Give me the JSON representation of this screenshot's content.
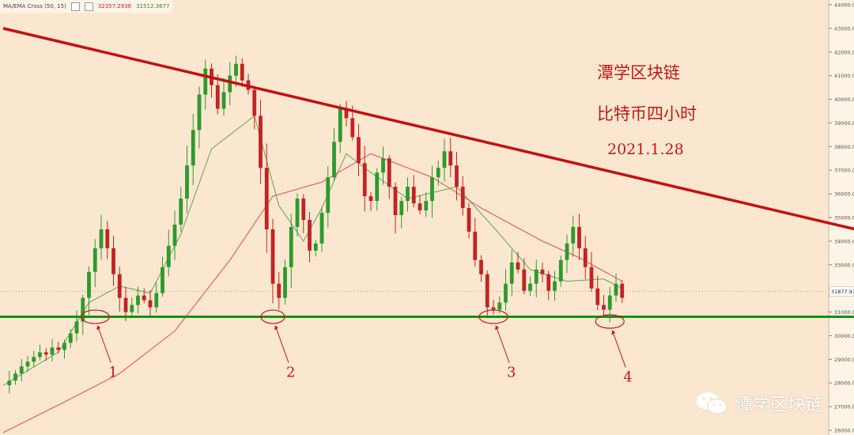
{
  "legend": {
    "indicator": "MA/EMA Cross (50, 15)",
    "value1": "32357.2936",
    "value2": "31512.3677"
  },
  "annotations": {
    "title": "潭学区块链",
    "subtitle": "比特币四小时",
    "date": "2021.1.28"
  },
  "watermark": "潭学区块链",
  "colors": {
    "background": "#fbe7cf",
    "up": "#2d9a2d",
    "down": "#c22323",
    "resistance": "#c21212",
    "support": "#159015",
    "ema_fast": "#6fa85a",
    "ma_slow": "#e05a4a"
  },
  "chart_data": {
    "type": "candlestick",
    "title": "",
    "xlabel": "",
    "ylabel": "",
    "ylim": [
      25800,
      44200
    ],
    "y_ticks": [
      26000,
      27000,
      28000,
      29000,
      30000,
      31000,
      32000,
      33000,
      34000,
      35000,
      36000,
      37000,
      38000,
      39000,
      40000,
      41000,
      42000,
      43000,
      44000
    ],
    "current_price": "31877.97",
    "close_series": [
      27900,
      28100,
      28400,
      28700,
      28900,
      29100,
      29300,
      29200,
      29500,
      29400,
      29700,
      30100,
      30600,
      31600,
      32700,
      33700,
      34500,
      33700,
      32600,
      31600,
      31000,
      31300,
      31700,
      31500,
      31200,
      31800,
      32900,
      33800,
      34700,
      35800,
      37200,
      38700,
      40200,
      41300,
      40600,
      39600,
      40300,
      41000,
      41500,
      40800,
      40400,
      39300,
      37100,
      34500,
      32200,
      31600,
      32900,
      34600,
      35800,
      34900,
      33600,
      33900,
      35200,
      36700,
      38200,
      39600,
      39200,
      38400,
      37300,
      35900,
      35700,
      36900,
      37500,
      36300,
      35100,
      35700,
      36300,
      35600,
      35300,
      35700,
      36700,
      37100,
      37800,
      37200,
      36300,
      35400,
      34400,
      33200,
      32600,
      31200,
      31100,
      31400,
      32200,
      33100,
      32800,
      31900,
      32200,
      32800,
      32600,
      31900,
      32300,
      33200,
      33900,
      34600,
      33700,
      32900,
      32000,
      31300,
      31100,
      31700,
      32200,
      31600
    ],
    "series": [
      {
        "name": "15 EMA",
        "points": [
          [
            0,
            27900
          ],
          [
            9,
            29300
          ],
          [
            14,
            31400
          ],
          [
            19,
            32100
          ],
          [
            24,
            31800
          ],
          [
            29,
            34300
          ],
          [
            34,
            37900
          ],
          [
            39,
            38900
          ],
          [
            41,
            39300
          ],
          [
            45,
            35500
          ],
          [
            49,
            34000
          ],
          [
            52,
            35400
          ],
          [
            56,
            37700
          ],
          [
            60,
            36900
          ],
          [
            66,
            35800
          ],
          [
            74,
            36300
          ],
          [
            80,
            34600
          ],
          [
            86,
            32800
          ],
          [
            92,
            32300
          ],
          [
            98,
            32400
          ],
          [
            101,
            32000
          ]
        ]
      },
      {
        "name": "50 MA",
        "points": [
          [
            0,
            25900
          ],
          [
            10,
            27200
          ],
          [
            19,
            28400
          ],
          [
            28,
            30200
          ],
          [
            37,
            33200
          ],
          [
            44,
            35900
          ],
          [
            52,
            36500
          ],
          [
            60,
            37700
          ],
          [
            70,
            36700
          ],
          [
            78,
            35400
          ],
          [
            88,
            34000
          ],
          [
            94,
            33300
          ],
          [
            101,
            32300
          ]
        ]
      }
    ],
    "trendlines": [
      {
        "name": "resistance",
        "from": [
          0,
          43000
        ],
        "to": [
          162,
          33100
        ]
      },
      {
        "name": "support",
        "from": [
          -2,
          30800
        ],
        "to": [
          165,
          30800
        ]
      }
    ],
    "markers": [
      {
        "label": "1",
        "center": [
          15,
          30800
        ]
      },
      {
        "label": "2",
        "center": [
          44,
          30800
        ]
      },
      {
        "label": "3",
        "center": [
          80,
          30800
        ]
      },
      {
        "label": "4",
        "center": [
          99,
          30600
        ]
      }
    ]
  }
}
